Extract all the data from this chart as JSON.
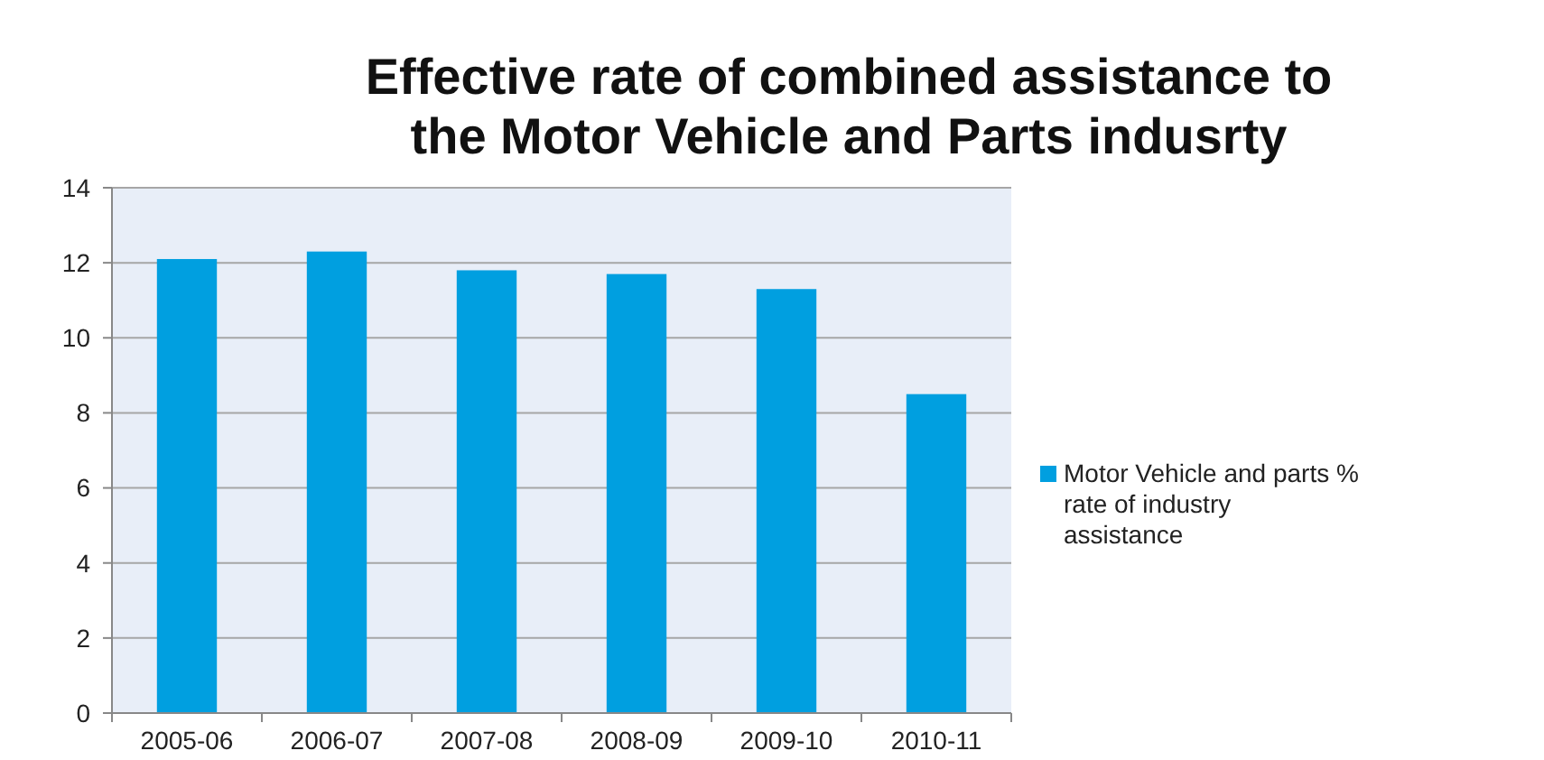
{
  "chart_data": {
    "type": "bar",
    "title": "Effective rate of combined assistance to the Motor Vehicle and Parts indusrty",
    "categories": [
      "2005-06",
      "2006-07",
      "2007-08",
      "2008-09",
      "2009-10",
      "2010-11"
    ],
    "series": [
      {
        "name": "Motor Vehicle and parts % rate of industry assistance",
        "color": "#009fe0",
        "values": [
          12.1,
          12.3,
          11.8,
          11.7,
          11.3,
          8.5
        ]
      }
    ],
    "ylim": [
      0,
      14
    ],
    "yticks": [
      0,
      2,
      4,
      6,
      8,
      10,
      12,
      14
    ],
    "grid": "y",
    "legend": "right"
  }
}
